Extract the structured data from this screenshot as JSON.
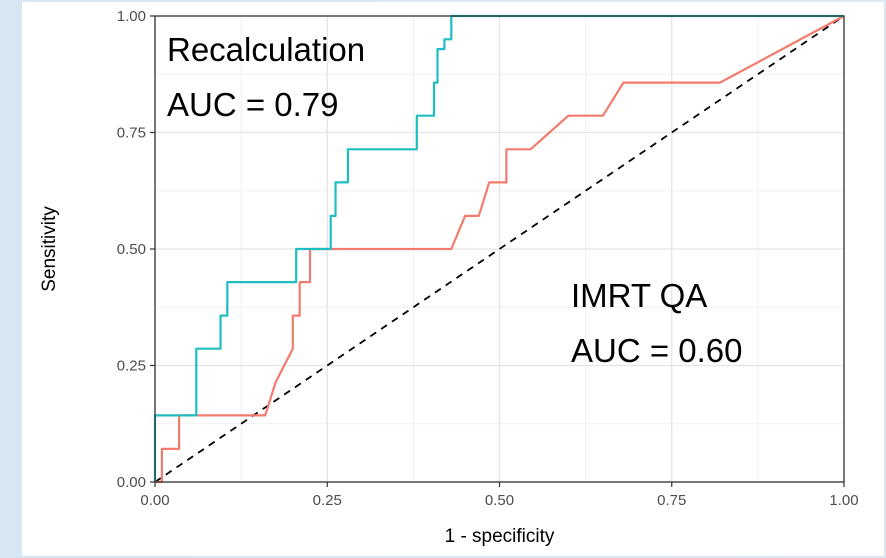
{
  "chart_data": {
    "type": "line",
    "xlabel": "1 - specificity",
    "ylabel": "Sensitivity",
    "xlim": [
      0,
      1
    ],
    "ylim": [
      0,
      1
    ],
    "x_ticks": [
      "0.00",
      "0.25",
      "0.50",
      "0.75",
      "1.00"
    ],
    "y_ticks": [
      "0.00",
      "0.25",
      "0.50",
      "0.75",
      "1.00"
    ],
    "grid": true,
    "annotations": [
      {
        "id": "recalc",
        "lines": [
          "Recalculation",
          "AUC = 0.79"
        ]
      },
      {
        "id": "imrt",
        "lines": [
          "IMRT QA",
          "AUC = 0.60"
        ]
      }
    ],
    "series": [
      {
        "id": "recalculation",
        "color": "#1fbdc1",
        "x": [
          0,
          0,
          0.06,
          0.06,
          0.095,
          0.095,
          0.105,
          0.105,
          0.205,
          0.205,
          0.255,
          0.255,
          0.262,
          0.262,
          0.28,
          0.28,
          0.38,
          0.38,
          0.405,
          0.405,
          0.41,
          0.41,
          0.42,
          0.42,
          0.43,
          0.43,
          1.0
        ],
        "y": [
          0,
          0.143,
          0.143,
          0.286,
          0.286,
          0.357,
          0.357,
          0.429,
          0.429,
          0.5,
          0.5,
          0.571,
          0.571,
          0.643,
          0.643,
          0.714,
          0.714,
          0.786,
          0.786,
          0.857,
          0.857,
          0.929,
          0.929,
          0.95,
          0.95,
          1.0,
          1.0
        ]
      },
      {
        "id": "imrt_qa",
        "color": "#f27b6e",
        "x": [
          0,
          0.01,
          0.01,
          0.035,
          0.035,
          0.16,
          0.175,
          0.2,
          0.2,
          0.21,
          0.21,
          0.225,
          0.225,
          0.235,
          0.235,
          0.43,
          0.45,
          0.47,
          0.485,
          0.505,
          0.51,
          0.51,
          0.545,
          0.6,
          0.65,
          0.68,
          0.82,
          1.0
        ],
        "y": [
          0,
          0,
          0.071,
          0.071,
          0.143,
          0.143,
          0.214,
          0.286,
          0.357,
          0.357,
          0.429,
          0.429,
          0.5,
          0.5,
          0.5,
          0.5,
          0.571,
          0.571,
          0.643,
          0.643,
          0.643,
          0.714,
          0.714,
          0.786,
          0.786,
          0.857,
          0.857,
          1.0
        ]
      },
      {
        "id": "reference",
        "color": "#000000",
        "dashed": true,
        "x": [
          0,
          1
        ],
        "y": [
          0,
          1
        ]
      }
    ]
  }
}
